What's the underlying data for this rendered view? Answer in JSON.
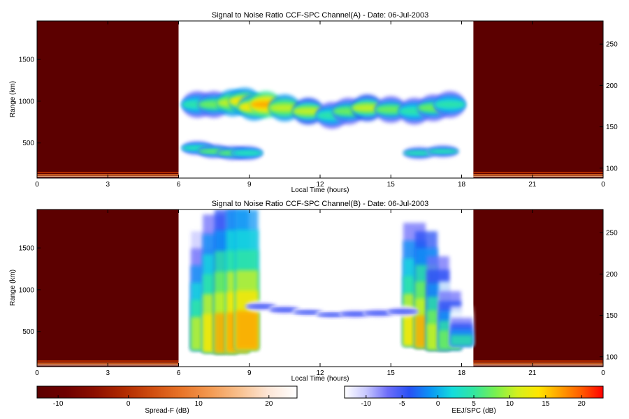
{
  "chart_data": [
    {
      "type": "heatmap",
      "title": "Signal to Noise Ratio CCF-SPC Channel(A) - Date: 06-Jul-2003",
      "xlabel": "Local Time (hours)",
      "ylabel": "Range (km)",
      "x_ticks": [
        "0",
        "3",
        "6",
        "9",
        "12",
        "15",
        "18",
        "21",
        "0"
      ],
      "x_tick_values": [
        0,
        3,
        6,
        9,
        12,
        15,
        18,
        21,
        24
      ],
      "xlim": [
        0,
        24
      ],
      "y_ticks": [
        "500",
        "1000",
        "1500"
      ],
      "y_tick_values": [
        500,
        1000,
        1500
      ],
      "ylim": [
        80,
        1960
      ],
      "y2_ticks": [
        "100",
        "150",
        "200",
        "250"
      ],
      "y2_tick_values": [
        100,
        150,
        200,
        250
      ],
      "y2lim": [
        88,
        278
      ],
      "grid": false,
      "spreadf_blocks": [
        {
          "x": [
            0,
            6
          ]
        },
        {
          "x": [
            18.5,
            24
          ]
        }
      ],
      "eej_echo_layer": {
        "x": [
          6.8,
          7.5,
          8.3,
          8.8,
          9.2,
          9.7,
          10.5,
          11.5,
          12.5,
          13.2,
          14,
          15,
          16,
          16.8,
          17.5
        ],
        "range_km": [
          960,
          960,
          980,
          1000,
          930,
          960,
          920,
          880,
          830,
          880,
          920,
          900,
          880,
          920,
          960
        ],
        "peak_snr_db": [
          6,
          8,
          12,
          14,
          14,
          18,
          12,
          10,
          6,
          8,
          10,
          8,
          6,
          8,
          6
        ]
      },
      "eej_lower_layer": {
        "x": [
          6.8,
          7.5,
          8.3,
          8.9,
          16.2,
          17.2
        ],
        "range_km": [
          440,
          400,
          380,
          380,
          380,
          400
        ],
        "peak_snr_db": [
          6,
          8,
          8,
          6,
          4,
          4
        ]
      }
    },
    {
      "type": "heatmap",
      "title": "Signal to Noise Ratio CCF-SPC Channel(B) - Date: 06-Jul-2003",
      "xlabel": "Local Time (hours)",
      "ylabel": "Range (km)",
      "x_ticks": [
        "0",
        "3",
        "6",
        "9",
        "12",
        "15",
        "18",
        "21",
        "0"
      ],
      "x_tick_values": [
        0,
        3,
        6,
        9,
        12,
        15,
        18,
        21,
        24
      ],
      "xlim": [
        0,
        24
      ],
      "y_ticks": [
        "500",
        "1000",
        "1500"
      ],
      "y_tick_values": [
        500,
        1000,
        1500
      ],
      "ylim": [
        80,
        1960
      ],
      "y2_ticks": [
        "100",
        "150",
        "200",
        "250"
      ],
      "y2_tick_values": [
        100,
        150,
        200,
        250
      ],
      "y2lim": [
        88,
        278
      ],
      "grid": false,
      "spreadf_blocks": [
        {
          "x": [
            0,
            6
          ]
        },
        {
          "x": [
            18.5,
            24
          ]
        }
      ],
      "morning_echo": {
        "x": [
          7.0,
          7.5,
          8.0,
          8.5,
          8.9
        ],
        "range_low_km": [
          250,
          220,
          210,
          220,
          250
        ],
        "range_high_km": [
          1700,
          1900,
          1960,
          1960,
          1960
        ],
        "peak_snr_db": [
          14,
          18,
          20,
          22,
          22
        ]
      },
      "afternoon_echo": {
        "x": [
          16.0,
          16.5,
          17.0,
          17.5,
          18.0
        ],
        "range_low_km": [
          300,
          280,
          260,
          270,
          320
        ],
        "range_high_km": [
          1800,
          1700,
          1400,
          1100,
          800
        ],
        "peak_snr_db": [
          18,
          20,
          16,
          12,
          8
        ]
      },
      "midday_layer": {
        "x": [
          9.5,
          10.5,
          11.5,
          12.5,
          13.5,
          14.5,
          15.5
        ],
        "range_km": [
          800,
          760,
          730,
          700,
          710,
          720,
          740
        ],
        "peak_snr_db": [
          -3,
          -3,
          -4,
          -4,
          -3,
          -3,
          -3
        ]
      }
    }
  ],
  "colorbars": [
    {
      "label": "Spread-F (dB)",
      "ticks": [
        "-10",
        "0",
        "10",
        "20"
      ],
      "tick_values": [
        -10,
        0,
        10,
        20
      ],
      "range": [
        -13,
        24
      ],
      "colors": [
        "#5c0000",
        "#6e0000",
        "#8c0f00",
        "#b02a00",
        "#d04e10",
        "#e87428",
        "#f39a52",
        "#f8c08e",
        "#fde6d6",
        "#ffffff"
      ]
    },
    {
      "label": "EEJ/SPC (dB)",
      "ticks": [
        "-10",
        "-5",
        "0",
        "5",
        "10",
        "15",
        "20"
      ],
      "tick_values": [
        -10,
        -5,
        0,
        5,
        10,
        15,
        20
      ],
      "range": [
        -13,
        23
      ],
      "colors": [
        "#ffffff",
        "#c8c8ff",
        "#6e6efa",
        "#2850f5",
        "#0a96f5",
        "#14dcdc",
        "#32e6a0",
        "#78f050",
        "#d2f01e",
        "#ffe600",
        "#ffa000",
        "#ff5a00",
        "#ff0000"
      ]
    }
  ]
}
